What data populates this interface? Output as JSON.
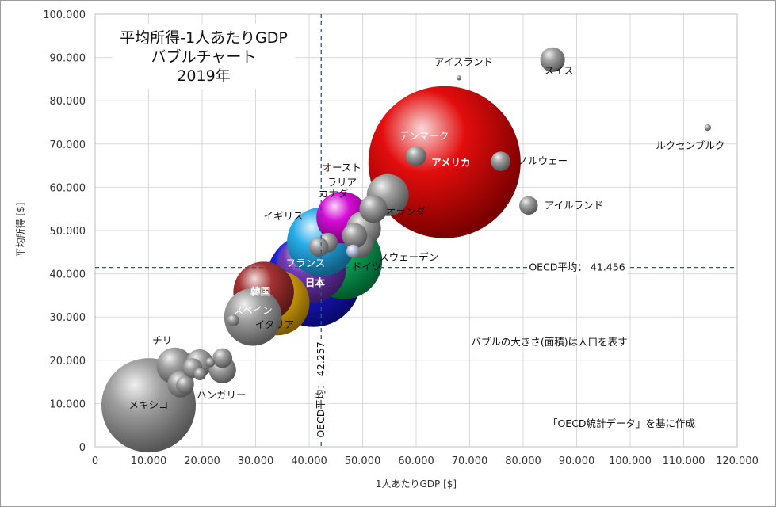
{
  "chart_data": {
    "type": "scatter",
    "title_lines": [
      "平均所得-1人あたりGDP",
      "バブルチャート",
      "2019年"
    ],
    "xlabel": "1人あたりGDP [$]",
    "ylabel": "平均所得 [$]",
    "xlim": [
      0,
      120000
    ],
    "ylim": [
      0,
      100000
    ],
    "x_ticks": [
      "0",
      "10.000",
      "20.000",
      "30.000",
      "40.000",
      "50.000",
      "60.000",
      "70.000",
      "80.000",
      "90.000",
      "100.000",
      "110.000",
      "120.000"
    ],
    "y_ticks": [
      "0",
      "10.000",
      "20.000",
      "30.000",
      "40.000",
      "50.000",
      "60.000",
      "70.000",
      "80.000",
      "90.000",
      "100.000"
    ],
    "grid": true,
    "bubble_size_meaning": "バブルの大きさ(面積)は人口を表す",
    "source_note": "「OECD統計データ」を基に作成",
    "reference_lines": [
      {
        "axis": "y",
        "value": 41456,
        "label": "OECD平均： 41.456"
      },
      {
        "axis": "x",
        "value": 42257,
        "label": "OECD平均： 42.257"
      }
    ],
    "points": [
      {
        "label": "アメリカ",
        "gdp": 65300,
        "income": 65800,
        "population": 328,
        "color": "#e00000"
      },
      {
        "label": "日本",
        "gdp": 40800,
        "income": 38600,
        "population": 126,
        "color": "#1111cc"
      },
      {
        "label": "メキシコ",
        "gdp": 10000,
        "income": 9600,
        "population": 126,
        "color": "#9a9a9a"
      },
      {
        "label": "ドイツ",
        "gdp": 46500,
        "income": 43000,
        "population": 83,
        "color": "#00a050"
      },
      {
        "label": "フランス",
        "gdp": 40500,
        "income": 41300,
        "population": 67,
        "color": "#6a2fb0"
      },
      {
        "label": "イギリス",
        "gdp": 42300,
        "income": 47400,
        "population": 67,
        "color": "#1ca8e8"
      },
      {
        "label": "イタリア",
        "gdp": 34000,
        "income": 33300,
        "population": 60,
        "color": "#e0a500"
      },
      {
        "label": "韓国",
        "gdp": 31500,
        "income": 35800,
        "population": 52,
        "color": "#a02828"
      },
      {
        "label": "スペイン",
        "gdp": 29500,
        "income": 30000,
        "population": 47,
        "color": "#9a9a9a"
      },
      {
        "label": "カナダ",
        "gdp": 46200,
        "income": 53000,
        "population": 38,
        "color": "#d400d4"
      },
      {
        "label": "オーストラリア",
        "gdp": 54700,
        "income": 58200,
        "population": 25,
        "color": "#9a9a9a"
      },
      {
        "label": "チリ",
        "gdp": 14900,
        "income": 18700,
        "population": 19,
        "color": "#9a9a9a"
      },
      {
        "label": "オランダ",
        "gdp": 50200,
        "income": 50500,
        "population": 17,
        "color": "#9a9a9a"
      },
      {
        "label": "スウェーデン",
        "gdp": 49500,
        "income": 46700,
        "population": 10,
        "color": "#9a9a9a"
      },
      {
        "label": "ハンガリー",
        "gdp": 16000,
        "income": 14500,
        "population": 10,
        "color": "#9a9a9a"
      },
      {
        "label": "スイス",
        "gdp": 85500,
        "income": 89500,
        "population": 8.6,
        "color": "#9a9a9a"
      },
      {
        "label": "ノルウェー",
        "gdp": 75800,
        "income": 66000,
        "population": 5.4,
        "color": "#9a9a9a"
      },
      {
        "label": "デンマーク",
        "gdp": 60000,
        "income": 67200,
        "population": 5.8,
        "color": "#9a9a9a"
      },
      {
        "label": "アイルランド",
        "gdp": 81000,
        "income": 55800,
        "population": 4.9,
        "color": "#9a9a9a"
      },
      {
        "label": "アイスランド",
        "gdp": 68000,
        "income": 85300,
        "population": 0.36,
        "color": "#9a9a9a"
      },
      {
        "label": "ルクセンブルク",
        "gdp": 114500,
        "income": 73800,
        "population": 0.62,
        "color": "#9a9a9a"
      },
      {
        "label": "",
        "gdp": 52000,
        "income": 55000,
        "population": 11,
        "color": "#9a9a9a"
      },
      {
        "label": "",
        "gdp": 48500,
        "income": 48800,
        "population": 9,
        "color": "#9a9a9a"
      },
      {
        "label": "",
        "gdp": 43500,
        "income": 47200,
        "population": 5.5,
        "color": "#9a9a9a"
      },
      {
        "label": "",
        "gdp": 41800,
        "income": 46200,
        "population": 5.4,
        "color": "#9a9a9a"
      },
      {
        "label": "",
        "gdp": 48200,
        "income": 45200,
        "population": 2.5,
        "color": "#bcc8e0"
      },
      {
        "label": "",
        "gdp": 25800,
        "income": 29200,
        "population": 2.0,
        "color": "#9a9a9a"
      },
      {
        "label": "",
        "gdp": 19500,
        "income": 19400,
        "population": 10.5,
        "color": "#9a9a9a"
      },
      {
        "label": "",
        "gdp": 23800,
        "income": 17800,
        "population": 10.5,
        "color": "#9a9a9a"
      },
      {
        "label": "",
        "gdp": 23800,
        "income": 20500,
        "population": 5.5,
        "color": "#9a9a9a"
      },
      {
        "label": "",
        "gdp": 18200,
        "income": 18200,
        "population": 5.5,
        "color": "#9a9a9a"
      },
      {
        "label": "",
        "gdp": 19600,
        "income": 16800,
        "population": 2.1,
        "color": "#9a9a9a"
      },
      {
        "label": "",
        "gdp": 16800,
        "income": 14300,
        "population": 4.5,
        "color": "#9a9a9a"
      },
      {
        "label": "",
        "gdp": 21500,
        "income": 19500,
        "population": 1.3,
        "color": "#9a9a9a"
      }
    ]
  }
}
